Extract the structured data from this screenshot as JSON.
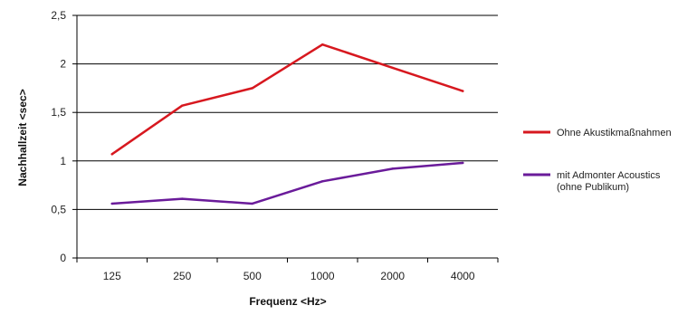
{
  "chart_data": {
    "type": "line",
    "categories": [
      "125",
      "250",
      "500",
      "1000",
      "2000",
      "4000"
    ],
    "y_ticks": [
      "0",
      "0,5",
      "1",
      "1,5",
      "2",
      "2,5"
    ],
    "ylim": [
      0,
      2.5
    ],
    "ylabel": "Nachhallzeit <sec>",
    "xlabel": "Frequenz <Hz>",
    "grid": "horizontal",
    "legend_position": "right",
    "series": [
      {
        "name": "Ohne Akustikmaßnahmen",
        "color": "#d7181f",
        "values": [
          1.07,
          1.57,
          1.75,
          2.2,
          1.96,
          1.72
        ]
      },
      {
        "name": [
          "mit Admonter Acoustics",
          "(ohne Publikum)"
        ],
        "color": "#6a1b9a",
        "values": [
          0.56,
          0.61,
          0.56,
          0.79,
          0.92,
          0.98
        ]
      }
    ]
  }
}
